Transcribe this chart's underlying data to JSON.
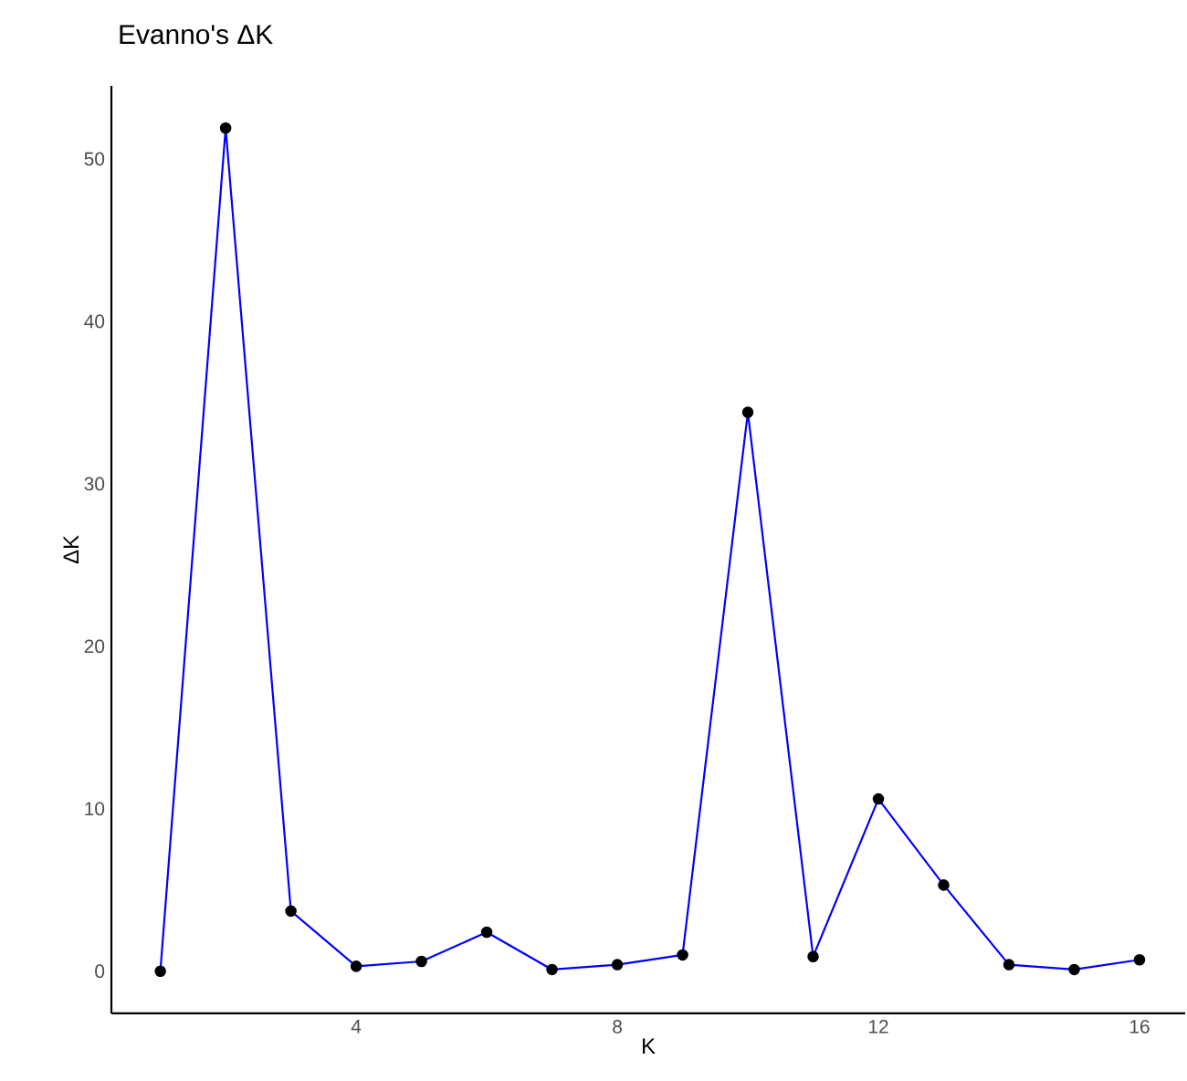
{
  "chart_data": {
    "type": "line",
    "title": "Evanno's ΔK",
    "xlabel": "K",
    "ylabel": "ΔK",
    "x": [
      1,
      2,
      3,
      4,
      5,
      6,
      7,
      8,
      9,
      10,
      11,
      12,
      13,
      14,
      15,
      16
    ],
    "series": [
      {
        "color": "#0000ff",
        "values": [
          0,
          51.9,
          3.7,
          0.3,
          0.6,
          2.4,
          0.1,
          0.4,
          1.0,
          34.4,
          0.9,
          10.6,
          5.3,
          0.4,
          0.1,
          0.7
        ]
      }
    ],
    "xlim": [
      0.25,
      16.7
    ],
    "ylim": [
      -2.6,
      54.5
    ],
    "xticks": [
      4,
      8,
      12,
      16
    ],
    "yticks": [
      0,
      10,
      20,
      30,
      40,
      50
    ],
    "grid": false,
    "marker": "circle",
    "line_style": "solid"
  }
}
